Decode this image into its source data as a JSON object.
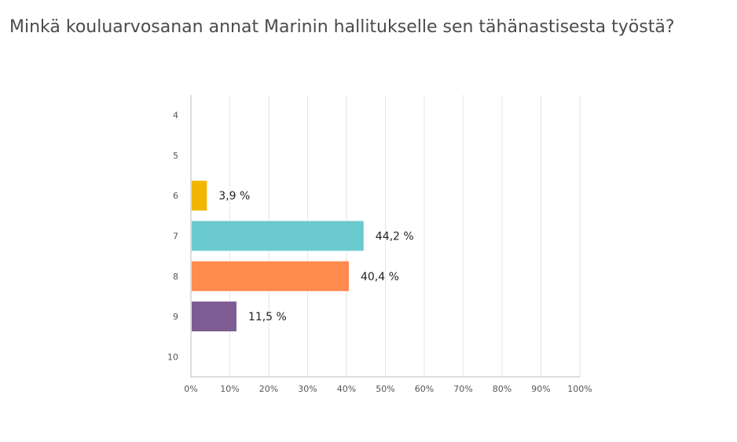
{
  "title": "Minkä kouluarvosanan annat Marinin hallitukselle sen tähänastisesta työstä?",
  "chart_data": {
    "type": "bar",
    "orientation": "horizontal",
    "title": "Minkä kouluarvosanan annat Marinin hallitukselle sen tähänastisesta työstä?",
    "categories": [
      "4",
      "5",
      "6",
      "7",
      "8",
      "9",
      "10"
    ],
    "values": [
      0,
      0,
      3.9,
      44.2,
      40.4,
      11.5,
      0
    ],
    "data_labels": [
      "",
      "",
      "3,9 %",
      "44,2 %",
      "40,4 %",
      "11,5 %",
      ""
    ],
    "colors": [
      "#f2b600",
      "#f2b600",
      "#f2b600",
      "#6bcacf",
      "#ff8b4f",
      "#7d5c93",
      "#7d5c93"
    ],
    "xlim": [
      0,
      100
    ],
    "x_ticks": [
      0,
      10,
      20,
      30,
      40,
      50,
      60,
      70,
      80,
      90,
      100
    ],
    "x_tick_labels": [
      "0%",
      "10%",
      "20%",
      "30%",
      "40%",
      "50%",
      "60%",
      "70%",
      "80%",
      "90%",
      "100%"
    ],
    "grid": true,
    "gridline_color": "#e6e6e6",
    "axis_color": "#bbbbbb",
    "xlabel": "",
    "ylabel": ""
  }
}
